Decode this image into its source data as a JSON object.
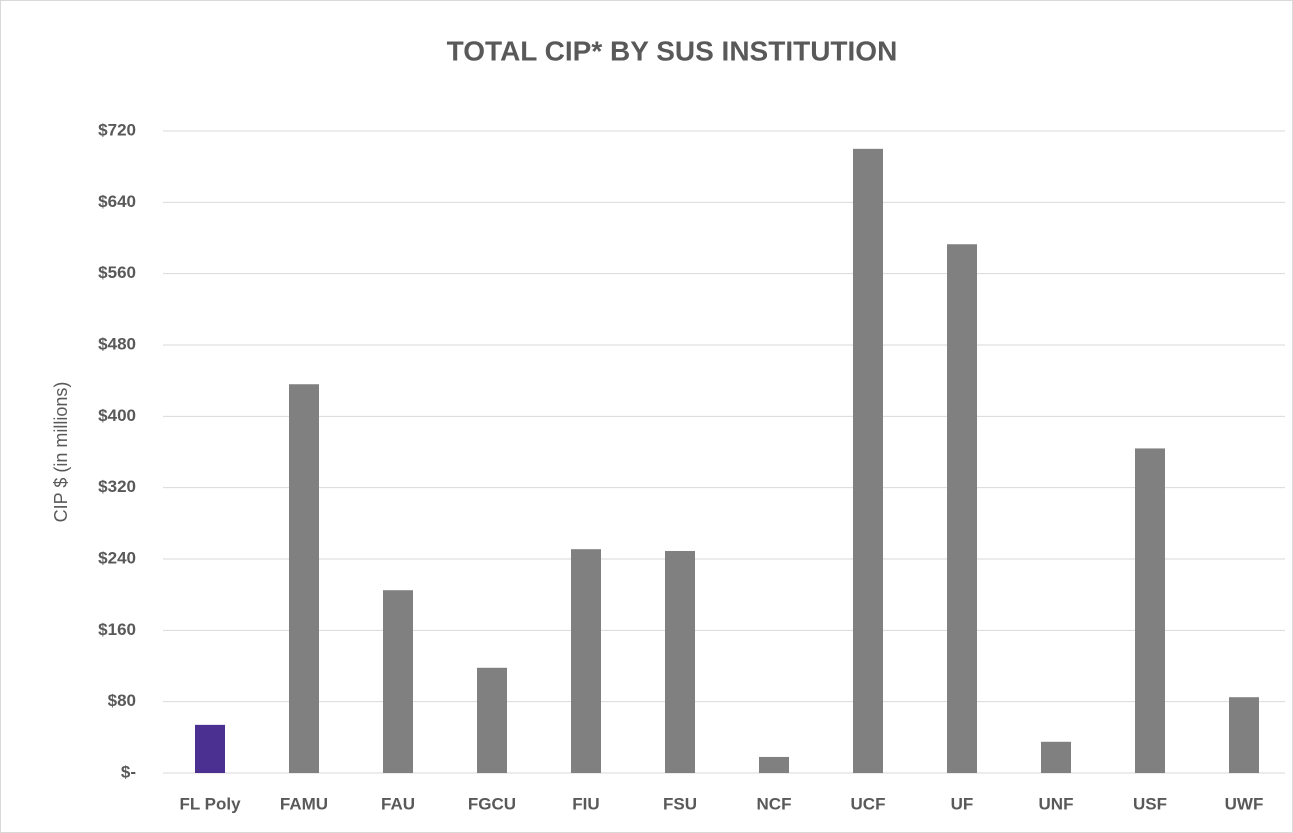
{
  "chart_data": {
    "type": "bar",
    "title": "TOTAL CIP* BY SUS INSTITUTION",
    "y_label": "CIP $ (in millions)",
    "categories": [
      "FL Poly",
      "FAMU",
      "FAU",
      "FGCU",
      "FIU",
      "FSU",
      "NCF",
      "UCF",
      "UF",
      "UNF",
      "USF",
      "UWF"
    ],
    "values": [
      54,
      436,
      205,
      118,
      251,
      249,
      18,
      700,
      593,
      35,
      364,
      85
    ],
    "colors": [
      "#4b2f91",
      "#808080",
      "#808080",
      "#808080",
      "#808080",
      "#808080",
      "#808080",
      "#808080",
      "#808080",
      "#808080",
      "#808080",
      "#808080"
    ],
    "ylim": [
      0,
      720
    ],
    "yticks": [
      {
        "value": 0,
        "label": "$-"
      },
      {
        "value": 80,
        "label": "$80"
      },
      {
        "value": 160,
        "label": "$160"
      },
      {
        "value": 240,
        "label": "$240"
      },
      {
        "value": 320,
        "label": "$320"
      },
      {
        "value": 400,
        "label": "$400"
      },
      {
        "value": 480,
        "label": "$480"
      },
      {
        "value": 560,
        "label": "$560"
      },
      {
        "value": 640,
        "label": "$640"
      },
      {
        "value": 720,
        "label": "$720"
      }
    ],
    "grid": true
  }
}
